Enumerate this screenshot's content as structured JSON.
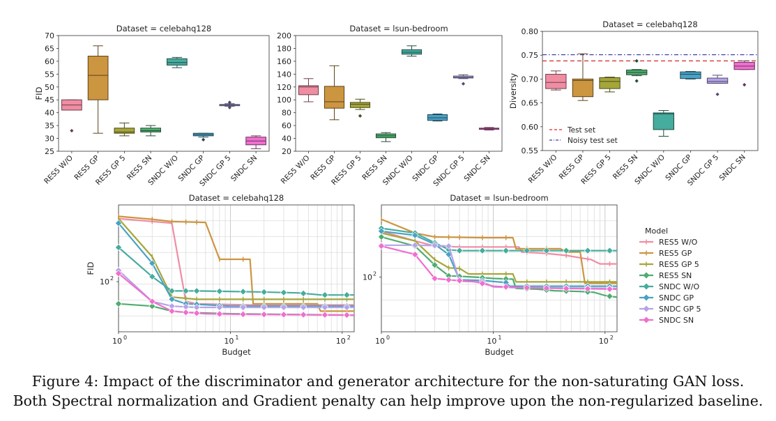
{
  "caption": {
    "line1": "Figure 4: Impact of the discriminator and generator architecture for the non-saturating GAN loss.",
    "line2": "Both Spectral normalization and Gradient penalty can help improve upon the non-regularized baseline."
  },
  "colors": {
    "RES5 W/O": "#ef8da3",
    "RES5 GP": "#cc9540",
    "RES5 GP 5": "#a5a63a",
    "RES5 SN": "#4fac70",
    "SNDC W/O": "#46ac9e",
    "SNDC GP": "#4aa2c4",
    "SNDC GP 5": "#b5a4e7",
    "SNDC SN": "#ef6fcf"
  },
  "chart_data": [
    {
      "type": "box",
      "title": "Dataset = celebahq128",
      "ylabel": "FID",
      "ylim": [
        25,
        70
      ],
      "yticks": [
        "25",
        "30",
        "35",
        "40",
        "45",
        "50",
        "55",
        "60",
        "65",
        "70"
      ],
      "categories": [
        "RES5 W/O",
        "RES5 GP",
        "RES5 GP 5",
        "RES5 SN",
        "SNDC W/O",
        "SNDC GP",
        "SNDC GP 5",
        "SNDC SN"
      ],
      "boxes": [
        {
          "whislo": 41,
          "q1": 41,
          "med": 43,
          "q3": 45,
          "whishi": 45,
          "fliers": [
            33
          ]
        },
        {
          "whislo": 32,
          "q1": 45,
          "med": 54.5,
          "q3": 62,
          "whishi": 66,
          "fliers": []
        },
        {
          "whislo": 31,
          "q1": 32,
          "med": 32.5,
          "q3": 34,
          "whishi": 36,
          "fliers": []
        },
        {
          "whislo": 31,
          "q1": 32.5,
          "med": 33,
          "q3": 34,
          "whishi": 35,
          "fliers": []
        },
        {
          "whislo": 57.5,
          "q1": 58.5,
          "med": 59.5,
          "q3": 61,
          "whishi": 61.5,
          "fliers": []
        },
        {
          "whislo": 30.5,
          "q1": 31,
          "med": 31.5,
          "q3": 32,
          "whishi": 32,
          "fliers": [
            29.5
          ]
        },
        {
          "whislo": 42.5,
          "q1": 42.7,
          "med": 43,
          "q3": 43.2,
          "whishi": 43.5,
          "fliers": [
            42,
            44
          ]
        },
        {
          "whislo": 26,
          "q1": 27.5,
          "med": 29,
          "q3": 30.5,
          "whishi": 31,
          "fliers": []
        }
      ]
    },
    {
      "type": "box",
      "title": "Dataset = lsun-bedroom",
      "ylabel": "",
      "ylim": [
        20,
        200
      ],
      "yticks": [
        "20",
        "40",
        "60",
        "80",
        "100",
        "120",
        "140",
        "160",
        "180",
        "200"
      ],
      "categories": [
        "RES5 W/O",
        "RES5 GP",
        "RES5 GP 5",
        "RES5 SN",
        "SNDC W/O",
        "SNDC GP",
        "SNDC GP 5",
        "SNDC SN"
      ],
      "boxes": [
        {
          "whislo": 97,
          "q1": 108,
          "med": 120,
          "q3": 122,
          "whishi": 133,
          "fliers": []
        },
        {
          "whislo": 69,
          "q1": 87,
          "med": 97,
          "q3": 121,
          "whishi": 153,
          "fliers": []
        },
        {
          "whislo": 85,
          "q1": 88,
          "med": 93,
          "q3": 96,
          "whishi": 101,
          "fliers": [
            75
          ]
        },
        {
          "whislo": 35,
          "q1": 41,
          "med": 44,
          "q3": 47,
          "whishi": 49,
          "fliers": []
        },
        {
          "whislo": 168,
          "q1": 171,
          "med": 174,
          "q3": 178,
          "whishi": 184,
          "fliers": []
        },
        {
          "whislo": 67,
          "q1": 68,
          "med": 72,
          "q3": 77,
          "whishi": 78,
          "fliers": []
        },
        {
          "whislo": 133,
          "q1": 134,
          "med": 135,
          "q3": 137,
          "whishi": 139,
          "fliers": [
            125
          ]
        },
        {
          "whislo": 53,
          "q1": 54,
          "med": 55,
          "q3": 56,
          "whishi": 57,
          "fliers": []
        }
      ]
    },
    {
      "type": "box",
      "title": "Dataset = celebahq128",
      "ylabel": "Diversity",
      "ylim": [
        0.55,
        0.8
      ],
      "yticks": [
        "0.55",
        "0.60",
        "0.65",
        "0.70",
        "0.75",
        "0.80"
      ],
      "categories": [
        "RES5 W/O",
        "RES5 GP",
        "RES5 GP 5",
        "RES5 SN",
        "SNDC W/O",
        "SNDC GP",
        "SNDC GP 5",
        "SNDC SN"
      ],
      "boxes": [
        {
          "whislo": 0.677,
          "q1": 0.68,
          "med": 0.693,
          "q3": 0.71,
          "whishi": 0.717,
          "fliers": []
        },
        {
          "whislo": 0.655,
          "q1": 0.663,
          "med": 0.697,
          "q3": 0.7,
          "whishi": 0.753,
          "fliers": []
        },
        {
          "whislo": 0.673,
          "q1": 0.68,
          "med": 0.695,
          "q3": 0.703,
          "whishi": 0.704,
          "fliers": []
        },
        {
          "whislo": 0.707,
          "q1": 0.709,
          "med": 0.714,
          "q3": 0.719,
          "whishi": 0.72,
          "fliers": [
            0.738,
            0.696
          ]
        },
        {
          "whislo": 0.58,
          "q1": 0.594,
          "med": 0.627,
          "q3": 0.629,
          "whishi": 0.634,
          "fliers": []
        },
        {
          "whislo": 0.7,
          "q1": 0.701,
          "med": 0.71,
          "q3": 0.715,
          "whishi": 0.716,
          "fliers": []
        },
        {
          "whislo": 0.691,
          "q1": 0.691,
          "med": 0.695,
          "q3": 0.702,
          "whishi": 0.708,
          "fliers": [
            0.668
          ]
        },
        {
          "whislo": 0.72,
          "q1": 0.72,
          "med": 0.727,
          "q3": 0.735,
          "whishi": 0.738,
          "fliers": [
            0.688
          ]
        }
      ],
      "reference_lines": [
        {
          "name": "Test set",
          "value": 0.738,
          "style": "dashed",
          "color": "#d62728"
        },
        {
          "name": "Noisy test set",
          "value": 0.751,
          "style": "dashdot",
          "color": "#3a3aa8"
        }
      ],
      "legend_position": "bottom-left"
    },
    {
      "type": "line",
      "title": "Dataset = celebahq128",
      "xlabel": "Budget",
      "ylabel": "FID",
      "xscale": "log",
      "yscale": "log",
      "xlim": [
        1,
        128
      ],
      "ylim": [
        22,
        120
      ],
      "xticks": [
        {
          "v": 1,
          "b": "10",
          "e": "0"
        },
        {
          "v": 10,
          "b": "10",
          "e": "1"
        },
        {
          "v": 100,
          "b": "10",
          "e": "2"
        }
      ],
      "yticks": [
        {
          "v": 43,
          "b": "10",
          "e": "2"
        }
      ],
      "series": [
        {
          "name": "RES5 W/O",
          "points": [
            [
              1,
              100
            ],
            [
              3,
              94
            ],
            [
              4,
              33
            ],
            [
              5,
              32
            ],
            [
              15,
              31.5
            ],
            [
              128,
              31.5
            ]
          ]
        },
        {
          "name": "RES5 GP",
          "points": [
            [
              1,
              103
            ],
            [
              2,
              99
            ],
            [
              3,
              96
            ],
            [
              6,
              95
            ],
            [
              8,
              58
            ],
            [
              15,
              58
            ],
            [
              16,
              32
            ],
            [
              60,
              32
            ],
            [
              64,
              29
            ],
            [
              128,
              29
            ]
          ]
        },
        {
          "name": "RES5 GP 5",
          "points": [
            [
              1,
              100
            ],
            [
              2,
              60
            ],
            [
              3,
              35
            ],
            [
              5,
              34
            ],
            [
              128,
              34
            ]
          ]
        },
        {
          "name": "RES5 SN",
          "points": [
            [
              1,
              32
            ],
            [
              2,
              31
            ],
            [
              3,
              29
            ],
            [
              4,
              28.5
            ],
            [
              10,
              28
            ],
            [
              128,
              27.5
            ]
          ]
        },
        {
          "name": "SNDC W/O",
          "points": [
            [
              1,
              68
            ],
            [
              2,
              46
            ],
            [
              3,
              38
            ],
            [
              5,
              38
            ],
            [
              18,
              37.5
            ],
            [
              40,
              37
            ],
            [
              65,
              36
            ],
            [
              128,
              36
            ]
          ]
        },
        {
          "name": "SNDC GP",
          "points": [
            [
              1,
              94
            ],
            [
              2,
              55
            ],
            [
              3,
              34
            ],
            [
              4,
              32
            ],
            [
              10,
              31
            ],
            [
              128,
              31
            ]
          ]
        },
        {
          "name": "SNDC GP 5",
          "points": [
            [
              1,
              50
            ],
            [
              2,
              33
            ],
            [
              3,
              31
            ],
            [
              5,
              30.5
            ],
            [
              128,
              30.5
            ]
          ]
        },
        {
          "name": "SNDC SN",
          "points": [
            [
              1,
              48
            ],
            [
              2,
              33
            ],
            [
              3,
              29
            ],
            [
              4,
              28.5
            ],
            [
              6,
              28
            ],
            [
              12,
              27.8
            ],
            [
              128,
              27.5
            ]
          ]
        }
      ],
      "legend_position": "none"
    },
    {
      "type": "line",
      "title": "Dataset = lsun-bedroom",
      "xlabel": "Budget",
      "ylabel": "",
      "xscale": "log",
      "yscale": "log",
      "xlim": [
        1,
        128
      ],
      "ylim": [
        60,
        300
      ],
      "xticks": [
        {
          "v": 1,
          "b": "10",
          "e": "0"
        },
        {
          "v": 10,
          "b": "10",
          "e": "1"
        },
        {
          "v": 100,
          "b": "10",
          "e": "2"
        }
      ],
      "yticks": [
        {
          "v": 120,
          "b": "10",
          "e": "2"
        }
      ],
      "series": [
        {
          "name": "RES5 W/O",
          "points": [
            [
              1,
              215
            ],
            [
              2,
              190
            ],
            [
              3,
              178
            ],
            [
              5,
              176
            ],
            [
              17,
              176
            ],
            [
              18,
              165
            ],
            [
              30,
              162
            ],
            [
              45,
              158
            ],
            [
              75,
              150
            ],
            [
              90,
              142
            ],
            [
              128,
              142
            ]
          ]
        },
        {
          "name": "RES5 GP",
          "points": [
            [
              1,
              250
            ],
            [
              2,
              210
            ],
            [
              3,
              200
            ],
            [
              8,
              198
            ],
            [
              15,
              198
            ],
            [
              16,
              172
            ],
            [
              40,
              172
            ],
            [
              45,
              165
            ],
            [
              60,
              165
            ],
            [
              66,
              111
            ],
            [
              128,
              111
            ]
          ]
        },
        {
          "name": "RES5 GP 5",
          "points": [
            [
              1,
              210
            ],
            [
              2,
              190
            ],
            [
              3,
              150
            ],
            [
              4,
              135
            ],
            [
              5,
              134
            ],
            [
              6,
              125
            ],
            [
              15,
              125
            ],
            [
              16,
              113
            ],
            [
              128,
              113
            ]
          ]
        },
        {
          "name": "RES5 SN",
          "points": [
            [
              1,
              200
            ],
            [
              2,
              178
            ],
            [
              3,
              140
            ],
            [
              4,
              122
            ],
            [
              7,
              120
            ],
            [
              10,
              118
            ],
            [
              15,
              117
            ],
            [
              16,
              104
            ],
            [
              25,
              103
            ],
            [
              35,
              101
            ],
            [
              60,
              100
            ],
            [
              80,
              99
            ],
            [
              100,
              95
            ],
            [
              128,
              93
            ]
          ]
        },
        {
          "name": "SNDC W/O",
          "points": [
            [
              1,
              223
            ],
            [
              2,
              210
            ],
            [
              4,
              170
            ],
            [
              5,
              168
            ],
            [
              128,
              168
            ]
          ]
        },
        {
          "name": "SNDC GP",
          "points": [
            [
              1,
              215
            ],
            [
              2,
              204
            ],
            [
              3,
              182
            ],
            [
              4,
              160
            ],
            [
              5,
              116
            ],
            [
              8,
              115
            ],
            [
              11,
              113
            ],
            [
              13,
              112
            ],
            [
              14,
              107
            ],
            [
              20,
              107
            ],
            [
              128,
              107
            ]
          ]
        },
        {
          "name": "SNDC GP 5",
          "points": [
            [
              1,
              180
            ],
            [
              2,
              180
            ],
            [
              3,
              179
            ],
            [
              4,
              178
            ],
            [
              5,
              114
            ],
            [
              8,
              113
            ],
            [
              10,
              106
            ],
            [
              15,
              105
            ],
            [
              128,
              104
            ]
          ]
        },
        {
          "name": "SNDC SN",
          "points": [
            [
              1,
              178
            ],
            [
              2,
              160
            ],
            [
              3,
              118
            ],
            [
              4,
              116
            ],
            [
              7,
              113
            ],
            [
              10,
              107
            ],
            [
              18,
              105
            ],
            [
              40,
              104
            ],
            [
              128,
              103
            ]
          ]
        }
      ],
      "legend": {
        "title": "Model",
        "position": "right",
        "entries": [
          "RES5 W/O",
          "RES5 GP",
          "RES5 GP 5",
          "RES5 SN",
          "SNDC W/O",
          "SNDC GP",
          "SNDC GP 5",
          "SNDC SN"
        ]
      }
    }
  ]
}
